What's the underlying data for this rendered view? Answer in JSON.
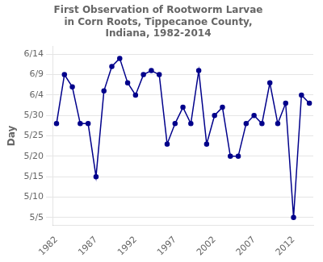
{
  "chart_data": {
    "type": "line",
    "title": "First Observation of Rootworm Larvae\nin Corn Roots, Tippecanoe County,\nIndiana, 1982-2014",
    "ylabel": "Day",
    "x": [
      1982,
      1983,
      1984,
      1985,
      1986,
      1987,
      1988,
      1989,
      1990,
      1991,
      1992,
      1993,
      1994,
      1995,
      1996,
      1997,
      1998,
      1999,
      2000,
      2001,
      2002,
      2003,
      2004,
      2005,
      2006,
      2007,
      2008,
      2009,
      2010,
      2011,
      2012,
      2013,
      2014
    ],
    "values": [
      148,
      160,
      157,
      148,
      148,
      135,
      156,
      162,
      164,
      158,
      155,
      160,
      161,
      160,
      143,
      148,
      152,
      148,
      161,
      143,
      150,
      152,
      140,
      140,
      148,
      150,
      148,
      158,
      148,
      153,
      125,
      155,
      153
    ],
    "color": "#00008B",
    "marker": "circle",
    "xlim": [
      1981.5,
      2014.5
    ],
    "xticks": [
      1982,
      1987,
      1992,
      1997,
      2002,
      2007,
      2012
    ],
    "ylim": [
      123,
      167
    ],
    "yticks": [
      {
        "value": 125,
        "label": "5/5"
      },
      {
        "value": 130,
        "label": "5/10"
      },
      {
        "value": 135,
        "label": "5/15"
      },
      {
        "value": 140,
        "label": "5/20"
      },
      {
        "value": 145,
        "label": "5/25"
      },
      {
        "value": 150,
        "label": "5/30"
      },
      {
        "value": 155,
        "label": "6/4"
      },
      {
        "value": 160,
        "label": "6/9"
      },
      {
        "value": 165,
        "label": "6/14"
      }
    ],
    "grid": "y"
  }
}
